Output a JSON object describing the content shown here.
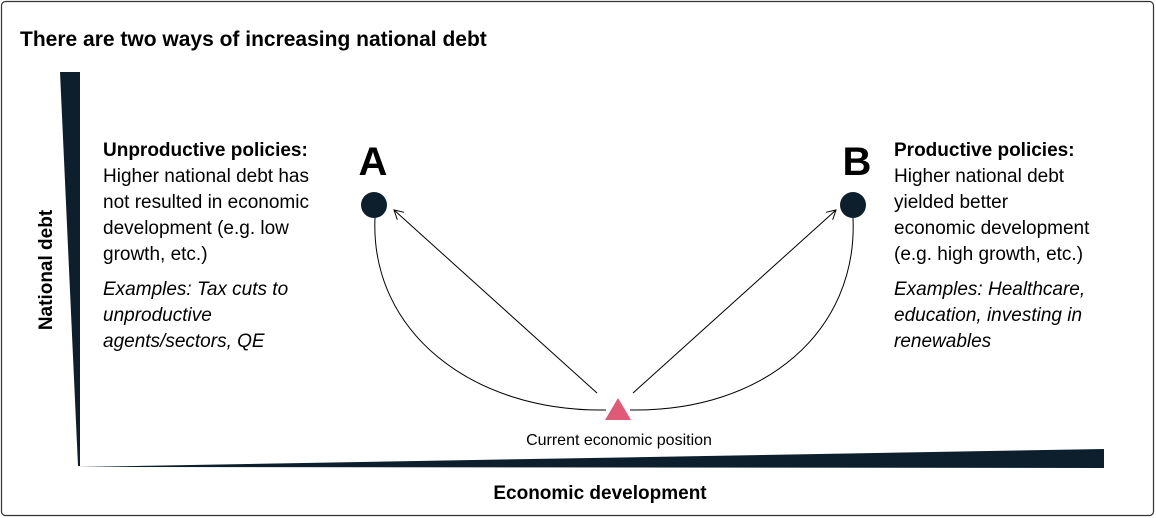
{
  "title": "There are two ways of increasing national debt",
  "y_axis_label": "National debt",
  "x_axis_label": "Economic development",
  "current_position": "Current economic position",
  "points": [
    {
      "label": "A",
      "heading": "Unproductive policies:",
      "body": [
        "Higher national debt has",
        "not resulted in economic",
        "development (e.g. low",
        "growth, etc.)"
      ],
      "examples": [
        "Examples: Tax cuts to",
        "unproductive",
        "agents/sectors, QE"
      ]
    },
    {
      "label": "B",
      "heading": "Productive policies:",
      "body": [
        "Higher national debt",
        "yielded better",
        "economic development",
        "(e.g. high growth, etc.)"
      ],
      "examples": [
        "Examples: Healthcare,",
        "education, investing in",
        "renewables"
      ]
    }
  ]
}
